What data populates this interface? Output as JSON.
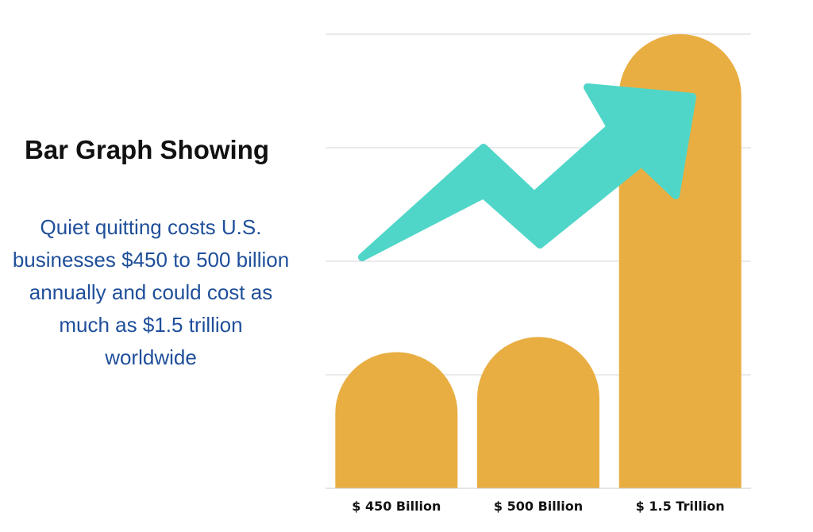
{
  "heading": "Bar Graph Showing",
  "description": "Quiet quitting costs U.S. businesses $450 to 500 billion annually and could cost as much as $1.5 trillion worldwide",
  "chart_data": {
    "type": "bar",
    "categories": [
      "$ 450 Billion",
      "$ 500 Billion",
      "$ 1.5 Trillion"
    ],
    "values": [
      450,
      500,
      1500
    ],
    "title": "",
    "xlabel": "",
    "ylabel": "",
    "grid": true,
    "trend_arrow": true,
    "colors": {
      "bar": "#e9ae42",
      "arrow": "#4fd6c8",
      "grid": "#d4d4d4",
      "heading": "#111111",
      "description": "#1f4f9a"
    }
  }
}
